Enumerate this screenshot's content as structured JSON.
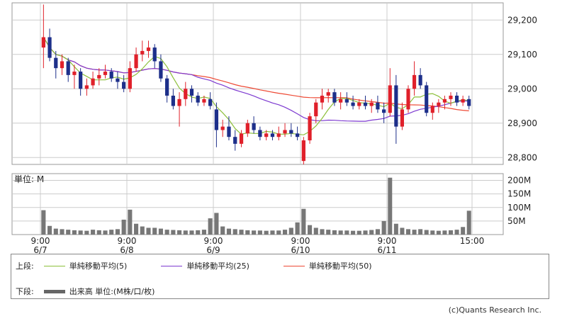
{
  "chart_data": {
    "type": "candlestick",
    "x_ticks": [
      {
        "time": "9:00",
        "date": "6/7"
      },
      {
        "time": "9:00",
        "date": "6/8"
      },
      {
        "time": "9:00",
        "date": "6/9"
      },
      {
        "time": "9:00",
        "date": "6/10"
      },
      {
        "time": "9:00",
        "date": "6/11"
      },
      {
        "time": "15:00",
        "date": ""
      }
    ],
    "price_axis": {
      "ylim": [
        28780,
        29250
      ],
      "ticks": [
        28800,
        28900,
        29000,
        29100,
        29200
      ],
      "tick_labels": [
        "28,800",
        "28,900",
        "29,000",
        "29,100",
        "29,200"
      ]
    },
    "volume_axis": {
      "unit_label": "単位: M",
      "ylim": [
        0,
        225
      ],
      "ticks": [
        50,
        100,
        150,
        200
      ],
      "tick_labels": [
        "50M",
        "100M",
        "150M",
        "200M"
      ]
    },
    "colors": {
      "up": "#e0202a",
      "down": "#1d2f8a",
      "ma5": "#8cbf3a",
      "ma25": "#7d3ad0",
      "ma50": "#ee4a35",
      "volume": "#777777"
    },
    "sessions": [
      {
        "candles": [
          [
            29120,
            29245,
            29060,
            29150
          ],
          [
            29150,
            29175,
            29080,
            29090
          ],
          [
            29090,
            29110,
            29030,
            29060
          ],
          [
            29060,
            29100,
            29040,
            29080
          ],
          [
            29080,
            29090,
            29020,
            29040
          ],
          [
            29040,
            29070,
            29000,
            29050
          ],
          [
            29050,
            29060,
            28980,
            29000
          ],
          [
            29000,
            29030,
            28980,
            29010
          ],
          [
            29010,
            29050,
            29000,
            29030
          ],
          [
            29030,
            29060,
            29010,
            29040
          ],
          [
            29040,
            29070,
            29030,
            29050
          ],
          [
            29050,
            29060,
            29020,
            29030
          ],
          [
            29030,
            29050,
            29000,
            29020
          ],
          [
            29020,
            29040,
            28990,
            29000
          ]
        ],
        "volumes": [
          90,
          32,
          22,
          20,
          18,
          16,
          15,
          14,
          18,
          16,
          15,
          18,
          20,
          55
        ]
      },
      {
        "candles": [
          [
            29000,
            29080,
            28990,
            29060
          ],
          [
            29060,
            29120,
            29050,
            29100
          ],
          [
            29100,
            29140,
            29080,
            29110
          ],
          [
            29110,
            29140,
            29090,
            29120
          ],
          [
            29120,
            29130,
            29060,
            29080
          ],
          [
            29080,
            29100,
            29020,
            29030
          ],
          [
            29030,
            29040,
            28960,
            28980
          ],
          [
            28980,
            29000,
            28940,
            28950
          ],
          [
            28950,
            28990,
            28890,
            28970
          ],
          [
            28970,
            29020,
            28950,
            29000
          ],
          [
            29000,
            29010,
            28960,
            28980
          ],
          [
            28980,
            28990,
            28950,
            28960
          ],
          [
            28960,
            28980,
            28950,
            28970
          ],
          [
            28970,
            28990,
            28940,
            28950
          ]
        ],
        "volumes": [
          92,
          40,
          30,
          25,
          25,
          22,
          18,
          17,
          16,
          15,
          15,
          16,
          18,
          60
        ]
      },
      {
        "candles": [
          [
            28940,
            28960,
            28830,
            28880
          ],
          [
            28880,
            28910,
            28860,
            28890
          ],
          [
            28890,
            28920,
            28850,
            28860
          ],
          [
            28860,
            28880,
            28820,
            28840
          ],
          [
            28840,
            28880,
            28830,
            28870
          ],
          [
            28870,
            28910,
            28860,
            28900
          ],
          [
            28900,
            28920,
            28870,
            28880
          ],
          [
            28880,
            28890,
            28850,
            28860
          ],
          [
            28860,
            28880,
            28850,
            28870
          ],
          [
            28870,
            28880,
            28850,
            28860
          ],
          [
            28860,
            28890,
            28850,
            28870
          ],
          [
            28870,
            28900,
            28860,
            28880
          ],
          [
            28880,
            28900,
            28860,
            28870
          ],
          [
            28870,
            28890,
            28850,
            28860
          ]
        ],
        "volumes": [
          80,
          30,
          22,
          20,
          18,
          16,
          15,
          15,
          14,
          15,
          15,
          18,
          25,
          45
        ]
      },
      {
        "candles": [
          [
            28790,
            28860,
            28780,
            28850
          ],
          [
            28850,
            28930,
            28840,
            28920
          ],
          [
            28920,
            28970,
            28900,
            28960
          ],
          [
            28960,
            29000,
            28940,
            28980
          ],
          [
            28980,
            29000,
            28960,
            28990
          ],
          [
            28990,
            29000,
            28950,
            28960
          ],
          [
            28960,
            28990,
            28940,
            28970
          ],
          [
            28970,
            28990,
            28950,
            28960
          ],
          [
            28960,
            28980,
            28940,
            28950
          ],
          [
            28950,
            28970,
            28940,
            28960
          ],
          [
            28960,
            28980,
            28940,
            28950
          ],
          [
            28950,
            28970,
            28930,
            28960
          ],
          [
            28960,
            28980,
            28930,
            28940
          ],
          [
            28940,
            28960,
            28900,
            28930
          ]
        ],
        "volumes": [
          95,
          35,
          25,
          20,
          18,
          16,
          15,
          15,
          14,
          14,
          15,
          17,
          20,
          50
        ]
      },
      {
        "candles": [
          [
            28930,
            29060,
            28920,
            29010
          ],
          [
            29010,
            29040,
            28840,
            28890
          ],
          [
            28890,
            28960,
            28880,
            28940
          ],
          [
            28940,
            29010,
            28930,
            29000
          ],
          [
            29000,
            29080,
            28980,
            29040
          ],
          [
            29040,
            29060,
            29000,
            29010
          ],
          [
            29010,
            29020,
            28920,
            28930
          ],
          [
            28930,
            28960,
            28910,
            28950
          ],
          [
            28950,
            28970,
            28930,
            28960
          ],
          [
            28960,
            28980,
            28940,
            28970
          ],
          [
            28970,
            28990,
            28950,
            28980
          ],
          [
            28980,
            28990,
            28950,
            28960
          ],
          [
            28960,
            28980,
            28950,
            28970
          ],
          [
            28970,
            28980,
            28940,
            28950
          ]
        ],
        "volumes": [
          210,
          40,
          25,
          20,
          18,
          20,
          17,
          15,
          14,
          15,
          16,
          18,
          28,
          88
        ]
      }
    ]
  },
  "legend": {
    "upper_label": "上段:",
    "lower_label": "下段:",
    "ma5": "単純移動平均(5)",
    "ma25": "単純移動平均(25)",
    "ma50": "単純移動平均(50)",
    "volume": "出来高 単位:(M株/口/枚)"
  },
  "copyright": "(c)Quants Research Inc."
}
